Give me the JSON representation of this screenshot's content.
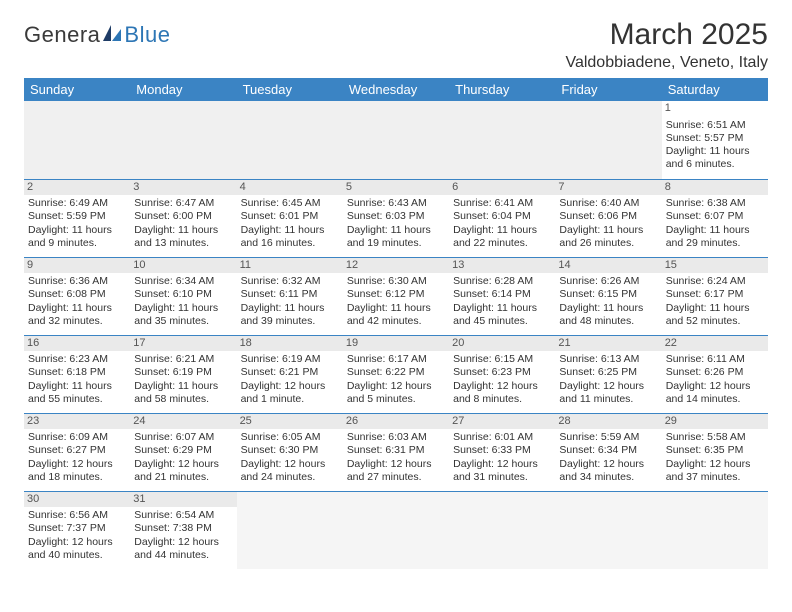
{
  "brand": {
    "part1": "Genera",
    "part2": "Blue"
  },
  "title": "March 2025",
  "location": "Valdobbiadene, Veneto, Italy",
  "colors": {
    "header_bg": "#3b84c4",
    "header_text": "#ffffff",
    "daynum_bg": "#eaeaea",
    "border": "#3b84c4",
    "brand_blue": "#2d76b5"
  },
  "weekdays": [
    "Sunday",
    "Monday",
    "Tuesday",
    "Wednesday",
    "Thursday",
    "Friday",
    "Saturday"
  ],
  "weeks": [
    [
      null,
      null,
      null,
      null,
      null,
      null,
      {
        "n": "1",
        "sunrise": "Sunrise: 6:51 AM",
        "sunset": "Sunset: 5:57 PM",
        "daylight": "Daylight: 11 hours and 6 minutes."
      }
    ],
    [
      {
        "n": "2",
        "sunrise": "Sunrise: 6:49 AM",
        "sunset": "Sunset: 5:59 PM",
        "daylight": "Daylight: 11 hours and 9 minutes."
      },
      {
        "n": "3",
        "sunrise": "Sunrise: 6:47 AM",
        "sunset": "Sunset: 6:00 PM",
        "daylight": "Daylight: 11 hours and 13 minutes."
      },
      {
        "n": "4",
        "sunrise": "Sunrise: 6:45 AM",
        "sunset": "Sunset: 6:01 PM",
        "daylight": "Daylight: 11 hours and 16 minutes."
      },
      {
        "n": "5",
        "sunrise": "Sunrise: 6:43 AM",
        "sunset": "Sunset: 6:03 PM",
        "daylight": "Daylight: 11 hours and 19 minutes."
      },
      {
        "n": "6",
        "sunrise": "Sunrise: 6:41 AM",
        "sunset": "Sunset: 6:04 PM",
        "daylight": "Daylight: 11 hours and 22 minutes."
      },
      {
        "n": "7",
        "sunrise": "Sunrise: 6:40 AM",
        "sunset": "Sunset: 6:06 PM",
        "daylight": "Daylight: 11 hours and 26 minutes."
      },
      {
        "n": "8",
        "sunrise": "Sunrise: 6:38 AM",
        "sunset": "Sunset: 6:07 PM",
        "daylight": "Daylight: 11 hours and 29 minutes."
      }
    ],
    [
      {
        "n": "9",
        "sunrise": "Sunrise: 6:36 AM",
        "sunset": "Sunset: 6:08 PM",
        "daylight": "Daylight: 11 hours and 32 minutes."
      },
      {
        "n": "10",
        "sunrise": "Sunrise: 6:34 AM",
        "sunset": "Sunset: 6:10 PM",
        "daylight": "Daylight: 11 hours and 35 minutes."
      },
      {
        "n": "11",
        "sunrise": "Sunrise: 6:32 AM",
        "sunset": "Sunset: 6:11 PM",
        "daylight": "Daylight: 11 hours and 39 minutes."
      },
      {
        "n": "12",
        "sunrise": "Sunrise: 6:30 AM",
        "sunset": "Sunset: 6:12 PM",
        "daylight": "Daylight: 11 hours and 42 minutes."
      },
      {
        "n": "13",
        "sunrise": "Sunrise: 6:28 AM",
        "sunset": "Sunset: 6:14 PM",
        "daylight": "Daylight: 11 hours and 45 minutes."
      },
      {
        "n": "14",
        "sunrise": "Sunrise: 6:26 AM",
        "sunset": "Sunset: 6:15 PM",
        "daylight": "Daylight: 11 hours and 48 minutes."
      },
      {
        "n": "15",
        "sunrise": "Sunrise: 6:24 AM",
        "sunset": "Sunset: 6:17 PM",
        "daylight": "Daylight: 11 hours and 52 minutes."
      }
    ],
    [
      {
        "n": "16",
        "sunrise": "Sunrise: 6:23 AM",
        "sunset": "Sunset: 6:18 PM",
        "daylight": "Daylight: 11 hours and 55 minutes."
      },
      {
        "n": "17",
        "sunrise": "Sunrise: 6:21 AM",
        "sunset": "Sunset: 6:19 PM",
        "daylight": "Daylight: 11 hours and 58 minutes."
      },
      {
        "n": "18",
        "sunrise": "Sunrise: 6:19 AM",
        "sunset": "Sunset: 6:21 PM",
        "daylight": "Daylight: 12 hours and 1 minute."
      },
      {
        "n": "19",
        "sunrise": "Sunrise: 6:17 AM",
        "sunset": "Sunset: 6:22 PM",
        "daylight": "Daylight: 12 hours and 5 minutes."
      },
      {
        "n": "20",
        "sunrise": "Sunrise: 6:15 AM",
        "sunset": "Sunset: 6:23 PM",
        "daylight": "Daylight: 12 hours and 8 minutes."
      },
      {
        "n": "21",
        "sunrise": "Sunrise: 6:13 AM",
        "sunset": "Sunset: 6:25 PM",
        "daylight": "Daylight: 12 hours and 11 minutes."
      },
      {
        "n": "22",
        "sunrise": "Sunrise: 6:11 AM",
        "sunset": "Sunset: 6:26 PM",
        "daylight": "Daylight: 12 hours and 14 minutes."
      }
    ],
    [
      {
        "n": "23",
        "sunrise": "Sunrise: 6:09 AM",
        "sunset": "Sunset: 6:27 PM",
        "daylight": "Daylight: 12 hours and 18 minutes."
      },
      {
        "n": "24",
        "sunrise": "Sunrise: 6:07 AM",
        "sunset": "Sunset: 6:29 PM",
        "daylight": "Daylight: 12 hours and 21 minutes."
      },
      {
        "n": "25",
        "sunrise": "Sunrise: 6:05 AM",
        "sunset": "Sunset: 6:30 PM",
        "daylight": "Daylight: 12 hours and 24 minutes."
      },
      {
        "n": "26",
        "sunrise": "Sunrise: 6:03 AM",
        "sunset": "Sunset: 6:31 PM",
        "daylight": "Daylight: 12 hours and 27 minutes."
      },
      {
        "n": "27",
        "sunrise": "Sunrise: 6:01 AM",
        "sunset": "Sunset: 6:33 PM",
        "daylight": "Daylight: 12 hours and 31 minutes."
      },
      {
        "n": "28",
        "sunrise": "Sunrise: 5:59 AM",
        "sunset": "Sunset: 6:34 PM",
        "daylight": "Daylight: 12 hours and 34 minutes."
      },
      {
        "n": "29",
        "sunrise": "Sunrise: 5:58 AM",
        "sunset": "Sunset: 6:35 PM",
        "daylight": "Daylight: 12 hours and 37 minutes."
      }
    ],
    [
      {
        "n": "30",
        "sunrise": "Sunrise: 6:56 AM",
        "sunset": "Sunset: 7:37 PM",
        "daylight": "Daylight: 12 hours and 40 minutes."
      },
      {
        "n": "31",
        "sunrise": "Sunrise: 6:54 AM",
        "sunset": "Sunset: 7:38 PM",
        "daylight": "Daylight: 12 hours and 44 minutes."
      },
      null,
      null,
      null,
      null,
      null
    ]
  ]
}
